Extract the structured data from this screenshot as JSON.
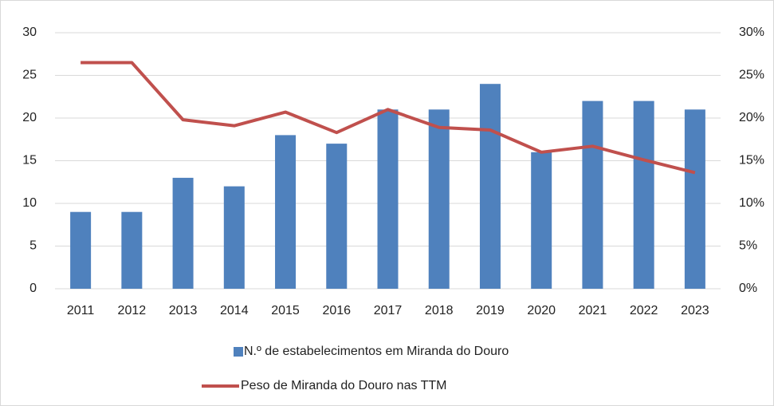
{
  "chart_data": {
    "type": "bar_line",
    "categories": [
      "2011",
      "2012",
      "2013",
      "2014",
      "2015",
      "2016",
      "2017",
      "2018",
      "2019",
      "2020",
      "2021",
      "2022",
      "2023"
    ],
    "series": [
      {
        "name": "N.º de estabelecimentos em Miranda do Douro",
        "type": "bar",
        "color": "#4f81bd",
        "values": [
          9,
          9,
          13,
          12,
          18,
          17,
          21,
          21,
          24,
          16,
          22,
          22,
          21
        ]
      },
      {
        "name": "Peso de Miranda do Douro nas TTM",
        "type": "line",
        "axis": "y2",
        "color": "#c0504d",
        "values": [
          26.5,
          26.5,
          19.8,
          19.1,
          20.7,
          18.3,
          21.0,
          18.9,
          18.6,
          16.0,
          16.7,
          15.1,
          13.6
        ]
      }
    ],
    "ylim": [
      0,
      30
    ],
    "yticks": [
      0,
      5,
      10,
      15,
      20,
      25,
      30
    ],
    "y2lim": [
      0,
      30
    ],
    "y2ticks": [
      {
        "value": 0,
        "label": "0%"
      },
      {
        "value": 5,
        "label": "5%"
      },
      {
        "value": 10,
        "label": "10%"
      },
      {
        "value": 15,
        "label": "15%"
      },
      {
        "value": 20,
        "label": "20%"
      },
      {
        "value": 25,
        "label": "25%"
      },
      {
        "value": 30,
        "label": "30%"
      }
    ],
    "grid": true,
    "legend": "bottom"
  }
}
